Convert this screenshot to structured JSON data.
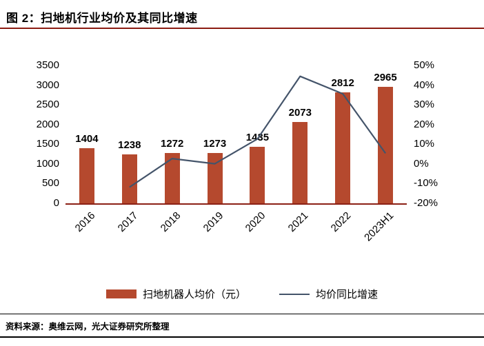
{
  "header": {
    "title": "图 2：扫地机行业均价及其同比增速"
  },
  "footer": {
    "source": "资料来源：奥维云网，光大证券研究所整理"
  },
  "legend": [
    {
      "type": "bar",
      "label": "扫地机器人均价（元）"
    },
    {
      "type": "line",
      "label": "均价同比增速"
    }
  ],
  "colors": {
    "bar": "#B5492E",
    "line": "#44546A",
    "title_rule": "#8B1A10",
    "axis": "#8B2015"
  },
  "chart_data": {
    "type": "bar+line",
    "categories": [
      "2016",
      "2017",
      "2018",
      "2019",
      "2020",
      "2021",
      "2022",
      "2023H1"
    ],
    "series": [
      {
        "name": "扫地机器人均价（元）",
        "type": "bar",
        "axis": "left",
        "values": [
          1404,
          1238,
          1272,
          1273,
          1435,
          2073,
          2812,
          2965
        ]
      },
      {
        "name": "均价同比增速",
        "type": "line",
        "axis": "right",
        "values": [
          null,
          -11.8,
          2.7,
          0.1,
          12.7,
          44.5,
          35.6,
          5.4
        ]
      }
    ],
    "bar_labels": [
      "1404",
      "1238",
      "1272",
      "1273",
      "1435",
      "2073",
      "2812",
      "2965"
    ],
    "left_axis": {
      "min": 0,
      "max": 3500,
      "step": 500,
      "ticks_top_to_bottom": [
        "3500",
        "3000",
        "2500",
        "2000",
        "1500",
        "1000",
        "500",
        "0"
      ]
    },
    "right_axis": {
      "min": -20,
      "max": 50,
      "step": 10,
      "ticks_top_to_bottom": [
        "50%",
        "40%",
        "30%",
        "20%",
        "10%",
        "0%",
        "-10%",
        "-20%"
      ]
    },
    "grid": false,
    "legend_position": "bottom"
  }
}
